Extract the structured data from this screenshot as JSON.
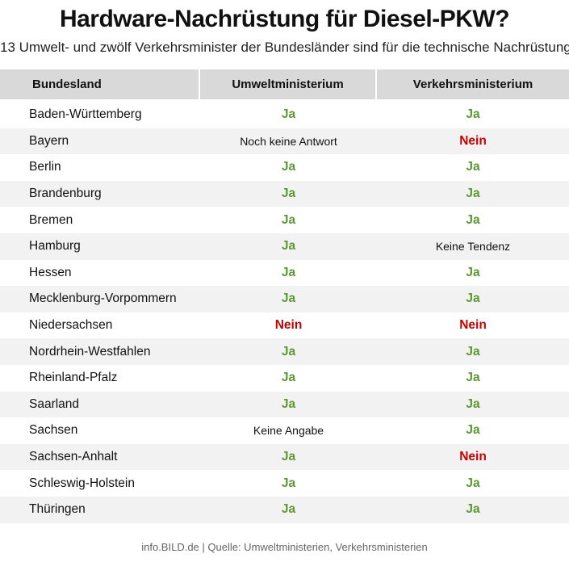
{
  "title": "Hardware-Nachrüstung für Diesel-PKW?",
  "subtitle": "13 Umwelt- und zwölf Verkehrsminister der Bundesländer sind für die technische Nachrüstung",
  "footer": "info.BILD.de | Quelle: Umweltministerien, Verkehrsministerien",
  "colors": {
    "ja": "#5a9a2e",
    "nein": "#cc0000",
    "header_bg": "#d9d9d9",
    "row_alt_bg": "#f2f2f2"
  },
  "chart_data": {
    "type": "table",
    "columns": [
      "Bundesland",
      "Umweltministerium",
      "Verkehrsministerium"
    ],
    "rows": [
      [
        "Baden-Württemberg",
        "Ja",
        "Ja"
      ],
      [
        "Bayern",
        "Noch keine Antwort",
        "Nein"
      ],
      [
        "Berlin",
        "Ja",
        "Ja"
      ],
      [
        "Brandenburg",
        "Ja",
        "Ja"
      ],
      [
        "Bremen",
        "Ja",
        "Ja"
      ],
      [
        "Hamburg",
        "Ja",
        "Keine Tendenz"
      ],
      [
        "Hessen",
        "Ja",
        "Ja"
      ],
      [
        "Mecklenburg-Vorpommern",
        "Ja",
        "Ja"
      ],
      [
        "Niedersachsen",
        "Nein",
        "Nein"
      ],
      [
        "Nordrhein-Westfahlen",
        "Ja",
        "Ja"
      ],
      [
        "Rheinland-Pfalz",
        "Ja",
        "Ja"
      ],
      [
        "Saarland",
        "Ja",
        "Ja"
      ],
      [
        "Sachsen",
        "Keine Angabe",
        "Ja"
      ],
      [
        "Sachsen-Anhalt",
        "Ja",
        "Nein"
      ],
      [
        "Schleswig-Holstein",
        "Ja",
        "Ja"
      ],
      [
        "Thüringen",
        "Ja",
        "Ja"
      ]
    ]
  }
}
